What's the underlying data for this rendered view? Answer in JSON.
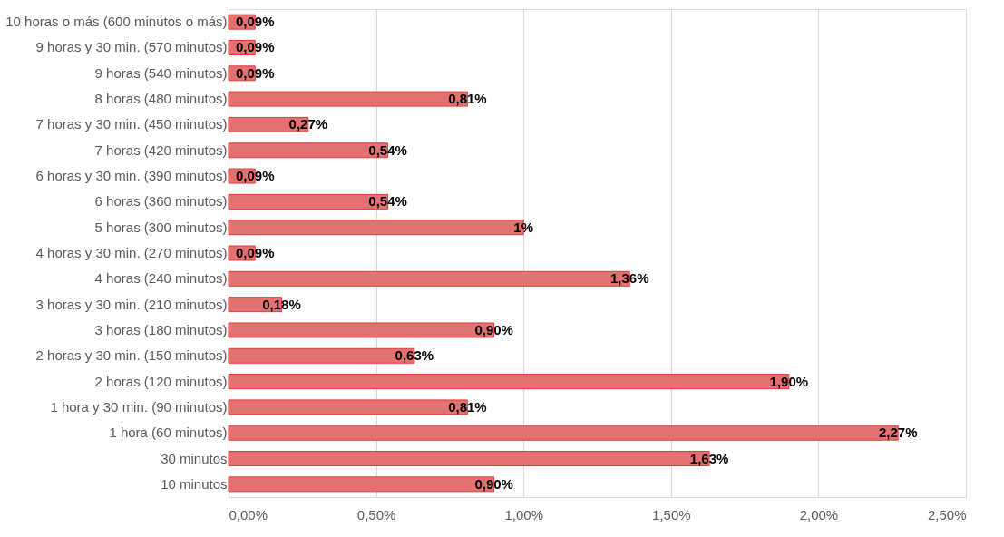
{
  "chart_data": {
    "type": "bar",
    "orientation": "horizontal",
    "categories": [
      "10 horas o más (600 minutos o más)",
      "9 horas y 30 min. (570 minutos)",
      "9 horas (540 minutos)",
      "8 horas (480 minutos)",
      "7 horas y 30 min. (450 minutos)",
      "7 horas (420 minutos)",
      "6 horas y 30 min. (390 minutos)",
      "6 horas (360 minutos)",
      "5 horas (300 minutos)",
      "4 horas y 30 min. (270 minutos)",
      "4 horas (240 minutos)",
      "3 horas y 30 min. (210 minutos)",
      "3 horas (180 minutos)",
      "2 horas y 30 min. (150 minutos)",
      "2 horas (120 minutos)",
      "1 hora y 30 min. (90 minutos)",
      "1 hora (60 minutos)",
      "30 minutos",
      "10 minutos"
    ],
    "values": [
      0.09,
      0.09,
      0.09,
      0.81,
      0.27,
      0.54,
      0.09,
      0.54,
      1,
      0.09,
      1.36,
      0.18,
      0.9,
      0.63,
      1.9,
      0.81,
      2.27,
      1.63,
      0.9
    ],
    "value_labels": [
      "0,09%",
      "0,09%",
      "0,09%",
      "0,81%",
      "0,27%",
      "0,54%",
      "0,09%",
      "0,54%",
      "1%",
      "0,09%",
      "1,36%",
      "0,18%",
      "0,90%",
      "0,63%",
      "1,90%",
      "0,81%",
      "2,27%",
      "1,63%",
      "0,90%"
    ],
    "color": "#e27272",
    "xlim": [
      0,
      2.5
    ],
    "xticks": [
      {
        "value": 0,
        "label": "0,00%"
      },
      {
        "value": 0.5,
        "label": "0,50%"
      },
      {
        "value": 1,
        "label": "1,00%"
      },
      {
        "value": 1.5,
        "label": "1,50%"
      },
      {
        "value": 2,
        "label": "2,00%"
      },
      {
        "value": 2.5,
        "label": "2,50%"
      }
    ],
    "grid": "x"
  }
}
